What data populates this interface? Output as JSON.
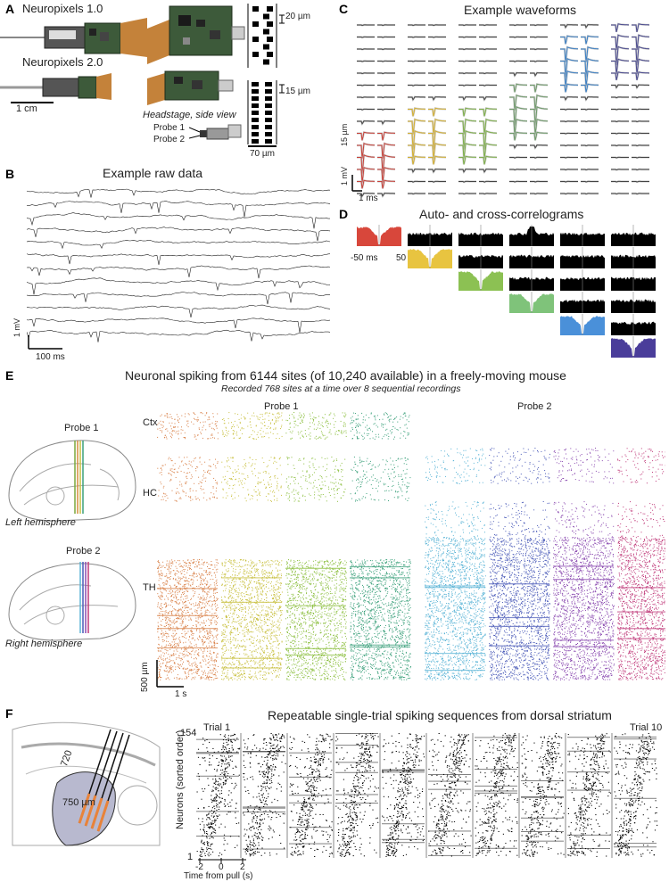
{
  "panel_labels": {
    "a": "A",
    "b": "B",
    "c": "C",
    "d": "D",
    "e": "E",
    "f": "F"
  },
  "panel_a": {
    "np1_title": "Neuropixels 1.0",
    "np2_title": "Neuropixels 2.0",
    "scale_1cm": "1 cm",
    "site_20um": "20 µm",
    "site_15um": "15 µm",
    "width_70um": "70 µm",
    "headstage_caption": "Headstage, side view",
    "probe1": "Probe 1",
    "probe2": "Probe 2"
  },
  "panel_b": {
    "title": "Example raw data",
    "scale_mv": "1 mV",
    "scale_ms": "100 ms",
    "n_traces": 12
  },
  "panel_c": {
    "title": "Example waveforms",
    "scale_um": "15 µm",
    "scale_mv": "1 mV",
    "scale_ms": "1 ms",
    "unit_colors": [
      "#c8423a",
      "#d4b032",
      "#7fb04a",
      "#6f9a6a",
      "#3a7fc4",
      "#4a4a8f"
    ]
  },
  "panel_d": {
    "title": "Auto- and cross-correlograms",
    "lag_min": "-50 ms",
    "lag_max": "50",
    "auto_colors": [
      "#d8473b",
      "#e8c440",
      "#8cc153",
      "#7fc37a",
      "#4a90d9",
      "#4a3d9a"
    ]
  },
  "panel_e": {
    "title": "Neuronal spiking from 6144 sites (of 10,240 available) in a freely-moving mouse",
    "subtitle": "Recorded 768 sites at a time over 8 sequential recordings",
    "probe1": "Probe 1",
    "probe2": "Probe 2",
    "left_hemi": "Left hemisphere",
    "right_hemi": "Right hemisphere",
    "region_ctx": "Ctx",
    "region_hc": "HC",
    "region_th": "TH",
    "scale_um": "500 µm",
    "scale_s": "1 s",
    "raster_colors": [
      "#d9824a",
      "#c9c040",
      "#8cbf3f",
      "#3aa07a",
      "#5ab4d6",
      "#4a5ab8",
      "#8a4ab0",
      "#c03a7a"
    ]
  },
  "panel_f": {
    "title": "Repeatable single-trial spiking sequences from dorsal striatum",
    "trial_first": "Trial 1",
    "trial_last": "Trial 10",
    "n_top": "154",
    "n_bottom": "1",
    "ylabel": "Neurons (sorted order)",
    "xlabel": "Time from pull (s)",
    "ticks": [
      "-2",
      "0",
      "2"
    ],
    "depth": "720",
    "depth_um": "750 µm",
    "n_trials": 10
  }
}
